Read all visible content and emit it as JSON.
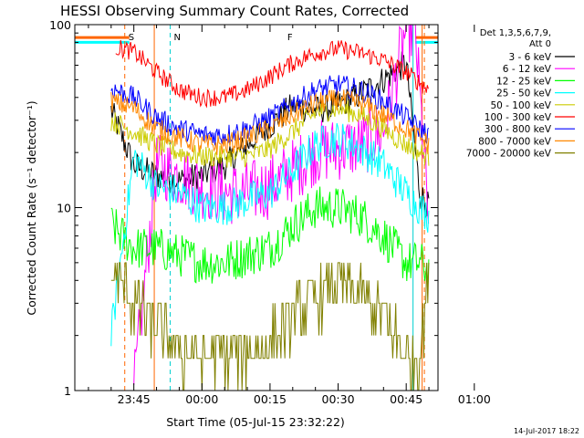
{
  "chart_data": {
    "type": "line",
    "title": "HESSI Observing Summary Count Rates, Corrected",
    "xlabel": "Start Time (05-Jul-15 23:32:22)",
    "ylabel": "Corrected Count Rate (s⁻¹ detector⁻¹)",
    "yscale": "log",
    "ylim": [
      1,
      100
    ],
    "xlim_minutes": [
      -13,
      67
    ],
    "x_ticks": [
      {
        "minute": 0,
        "label": "23:45"
      },
      {
        "minute": 15,
        "label": "00:00"
      },
      {
        "minute": 30,
        "label": "00:15"
      },
      {
        "minute": 45,
        "label": "00:30"
      },
      {
        "minute": 60,
        "label": "00:45"
      },
      {
        "minute": 75,
        "label": "01:00"
      }
    ],
    "y_ticks": [
      {
        "value": 1,
        "label": "1"
      },
      {
        "value": 10,
        "label": "10"
      },
      {
        "value": 100,
        "label": "100"
      }
    ],
    "legend_header": [
      "Det 1,3,5,6,7,9,",
      "Att 0"
    ],
    "legend_position": "right",
    "markers": [
      {
        "label": "S",
        "color": "#ff6600",
        "minute": -2
      },
      {
        "label": "N",
        "color": "#00d0d0",
        "minute": 8
      },
      {
        "label": "F",
        "color": "#dd0000",
        "minute": 33
      }
    ],
    "series": [
      {
        "name": "3 - 6 keV",
        "color": "#000000",
        "x": [
          -5,
          0,
          5,
          10,
          15,
          20,
          25,
          30,
          35,
          40,
          45,
          50,
          55,
          60,
          63,
          65
        ],
        "y": [
          34,
          17,
          15,
          14,
          15,
          17,
          22,
          28,
          36,
          34,
          36,
          42,
          50,
          62,
          12,
          10
        ]
      },
      {
        "name": "6 - 12 keV",
        "color": "#ff00ff",
        "x": [
          0,
          5,
          10,
          15,
          20,
          25,
          30,
          35,
          40,
          45,
          50,
          55,
          60,
          62,
          65
        ],
        "y": [
          1,
          17,
          15,
          13,
          12,
          12,
          13,
          16,
          20,
          21,
          22,
          26,
          95,
          90,
          8
        ]
      },
      {
        "name": "12 - 25 keV",
        "color": "#00ff00",
        "x": [
          -5,
          0,
          5,
          10,
          15,
          20,
          25,
          30,
          35,
          40,
          45,
          50,
          55,
          60,
          63,
          65
        ],
        "y": [
          8,
          6,
          6,
          5.5,
          5,
          5,
          5.5,
          6,
          8,
          10,
          10,
          9,
          7,
          5,
          5,
          4.5
        ]
      },
      {
        "name": "25 - 50 keV",
        "color": "#00ffff",
        "x": [
          -5,
          0,
          5,
          10,
          15,
          20,
          25,
          30,
          35,
          40,
          45,
          50,
          55,
          60,
          63,
          65
        ],
        "y": [
          2,
          19,
          13,
          12,
          10,
          10,
          11,
          12,
          16,
          22,
          24,
          21,
          17,
          12,
          10,
          9
        ]
      },
      {
        "name": "50 - 100 keV",
        "color": "#cccc00",
        "x": [
          -5,
          0,
          5,
          10,
          15,
          20,
          25,
          30,
          35,
          40,
          45,
          50,
          55,
          60,
          63,
          65
        ],
        "y": [
          30,
          26,
          22,
          20,
          19,
          19,
          19,
          21,
          26,
          33,
          35,
          32,
          27,
          22,
          20,
          19
        ]
      },
      {
        "name": "100 - 300 keV",
        "color": "#ff0000",
        "x": [
          -4,
          0,
          5,
          10,
          15,
          20,
          25,
          30,
          35,
          40,
          45,
          50,
          55,
          60,
          63,
          65
        ],
        "y": [
          75,
          71,
          55,
          44,
          40,
          40,
          44,
          52,
          62,
          70,
          74,
          70,
          64,
          55,
          48,
          44
        ]
      },
      {
        "name": "300 - 800 keV",
        "color": "#0000ff",
        "x": [
          -5,
          0,
          5,
          10,
          15,
          20,
          25,
          30,
          35,
          40,
          45,
          50,
          55,
          60,
          63,
          65
        ],
        "y": [
          45,
          40,
          31,
          27,
          25,
          25,
          27,
          31,
          37,
          44,
          47,
          44,
          38,
          31,
          27,
          25
        ]
      },
      {
        "name": "800 - 7000 keV",
        "color": "#ff8800",
        "x": [
          -5,
          0,
          5,
          10,
          15,
          20,
          25,
          30,
          35,
          40,
          45,
          50,
          55,
          60,
          63,
          65
        ],
        "y": [
          38,
          35,
          27,
          24,
          22,
          22,
          24,
          27,
          32,
          37,
          39,
          37,
          32,
          27,
          24,
          22
        ]
      },
      {
        "name": "7000 - 20000 keV",
        "color": "#808000",
        "x": [
          -5,
          0,
          5,
          10,
          15,
          20,
          25,
          30,
          35,
          40,
          45,
          50,
          55,
          60,
          63,
          65
        ],
        "y": [
          4.5,
          3,
          2.2,
          1.6,
          1.5,
          1.6,
          1.6,
          1.8,
          2.5,
          3.2,
          3.8,
          3.2,
          2.5,
          1.5,
          1.5,
          4.5
        ]
      }
    ],
    "overlay_lines": [
      {
        "label": "S",
        "color": "#ff6600",
        "y": 85
      },
      {
        "label": "N",
        "color": "#00ffff",
        "y": 80
      }
    ]
  },
  "footer": {
    "timestamp": "14-Jul-2017 18:22"
  }
}
